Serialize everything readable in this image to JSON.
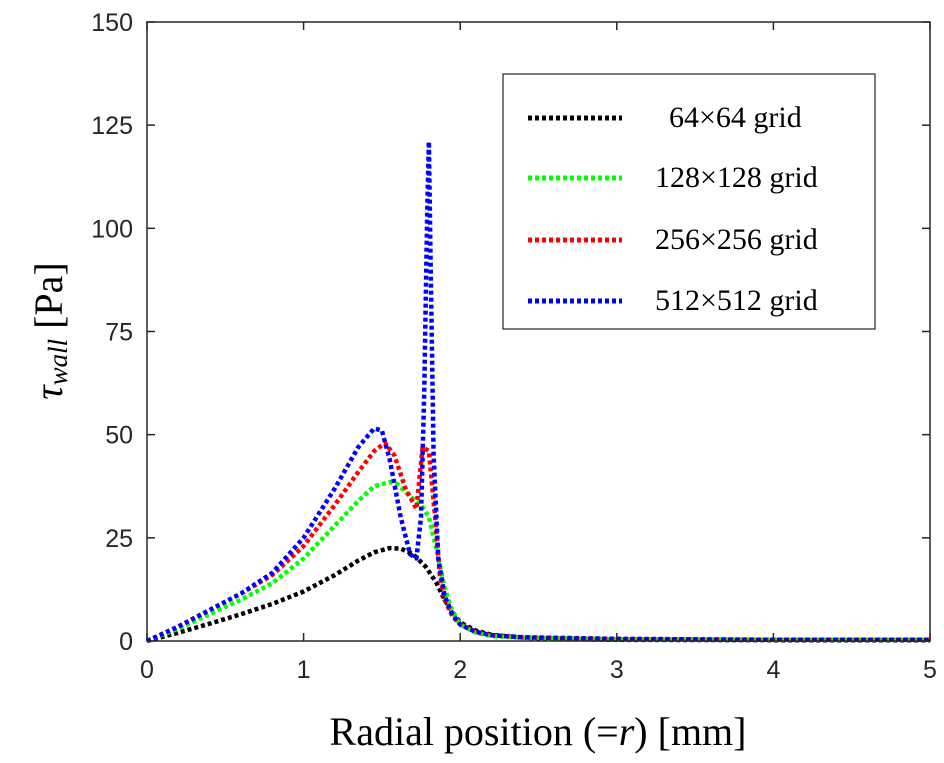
{
  "chart_data": {
    "type": "line",
    "xlabel_parts": [
      "Radial position (=",
      "r",
      ") [mm]"
    ],
    "ylabel_parts": [
      "τ",
      "wall",
      " [Pa]"
    ],
    "xlim": [
      0,
      5
    ],
    "ylim": [
      0,
      150
    ],
    "xticks": [
      0,
      1,
      2,
      3,
      4,
      5
    ],
    "yticks": [
      0,
      25,
      50,
      75,
      100,
      125,
      150
    ],
    "grid": false,
    "legend_position": "top-right",
    "line_style": "dotted",
    "series": [
      {
        "name": "64×64 grid",
        "color": "#000000",
        "x": [
          0,
          0.2,
          0.4,
          0.6,
          0.8,
          1.0,
          1.2,
          1.35,
          1.45,
          1.55,
          1.62,
          1.7,
          1.78,
          1.85,
          1.9,
          1.95,
          2.0,
          2.1,
          2.2,
          2.4,
          2.6,
          3.0,
          4.0,
          5.0
        ],
        "y": [
          0,
          2,
          4.2,
          6.5,
          9,
          12,
          16,
          19.5,
          21.5,
          22.5,
          22.4,
          21,
          18,
          14,
          10,
          7,
          4.5,
          2.5,
          1.5,
          0.8,
          0.5,
          0.3,
          0.2,
          0.2
        ]
      },
      {
        "name": "128×128 grid",
        "color": "#00ff00",
        "x": [
          0,
          0.2,
          0.4,
          0.6,
          0.8,
          1.0,
          1.2,
          1.35,
          1.45,
          1.55,
          1.6,
          1.68,
          1.75,
          1.8,
          1.85,
          1.9,
          1.95,
          2.0,
          2.1,
          2.2,
          2.4,
          3.0,
          4.0,
          5.0
        ],
        "y": [
          0,
          3,
          6.5,
          10,
          14,
          20,
          28,
          34,
          37.5,
          38.5,
          38,
          35,
          33,
          30,
          22,
          13,
          7,
          4,
          2,
          1.2,
          0.8,
          0.4,
          0.3,
          0.3
        ]
      },
      {
        "name": "256×256 grid",
        "color": "#ff0000",
        "x": [
          0,
          0.2,
          0.4,
          0.6,
          0.8,
          1.0,
          1.2,
          1.35,
          1.45,
          1.52,
          1.58,
          1.65,
          1.72,
          1.76,
          1.8,
          1.84,
          1.87,
          1.9,
          1.95,
          2.0,
          2.1,
          2.2,
          2.4,
          3.0,
          4.0,
          5.0
        ],
        "y": [
          0,
          3.5,
          7.5,
          11.5,
          16,
          23,
          33,
          41,
          46,
          48,
          45,
          37,
          32,
          47,
          46,
          30,
          16,
          10,
          6,
          4,
          2.2,
          1.4,
          0.9,
          0.5,
          0.3,
          0.3
        ]
      },
      {
        "name": "512×512 grid",
        "color": "#0000ff",
        "x": [
          0,
          0.2,
          0.4,
          0.6,
          0.8,
          1.0,
          1.2,
          1.35,
          1.45,
          1.5,
          1.55,
          1.62,
          1.68,
          1.72,
          1.75,
          1.77,
          1.79,
          1.8,
          1.81,
          1.83,
          1.86,
          1.9,
          1.95,
          2.0,
          2.1,
          2.2,
          2.4,
          3.0,
          4.0,
          5.0
        ],
        "y": [
          0,
          3.5,
          7.5,
          11.5,
          16.5,
          25,
          37,
          47,
          51.5,
          51,
          44,
          30,
          21,
          20,
          30,
          60,
          105,
          121,
          95,
          45,
          20,
          11,
          6.5,
          4,
          2.2,
          1.4,
          0.9,
          0.5,
          0.3,
          0.3
        ]
      }
    ]
  }
}
